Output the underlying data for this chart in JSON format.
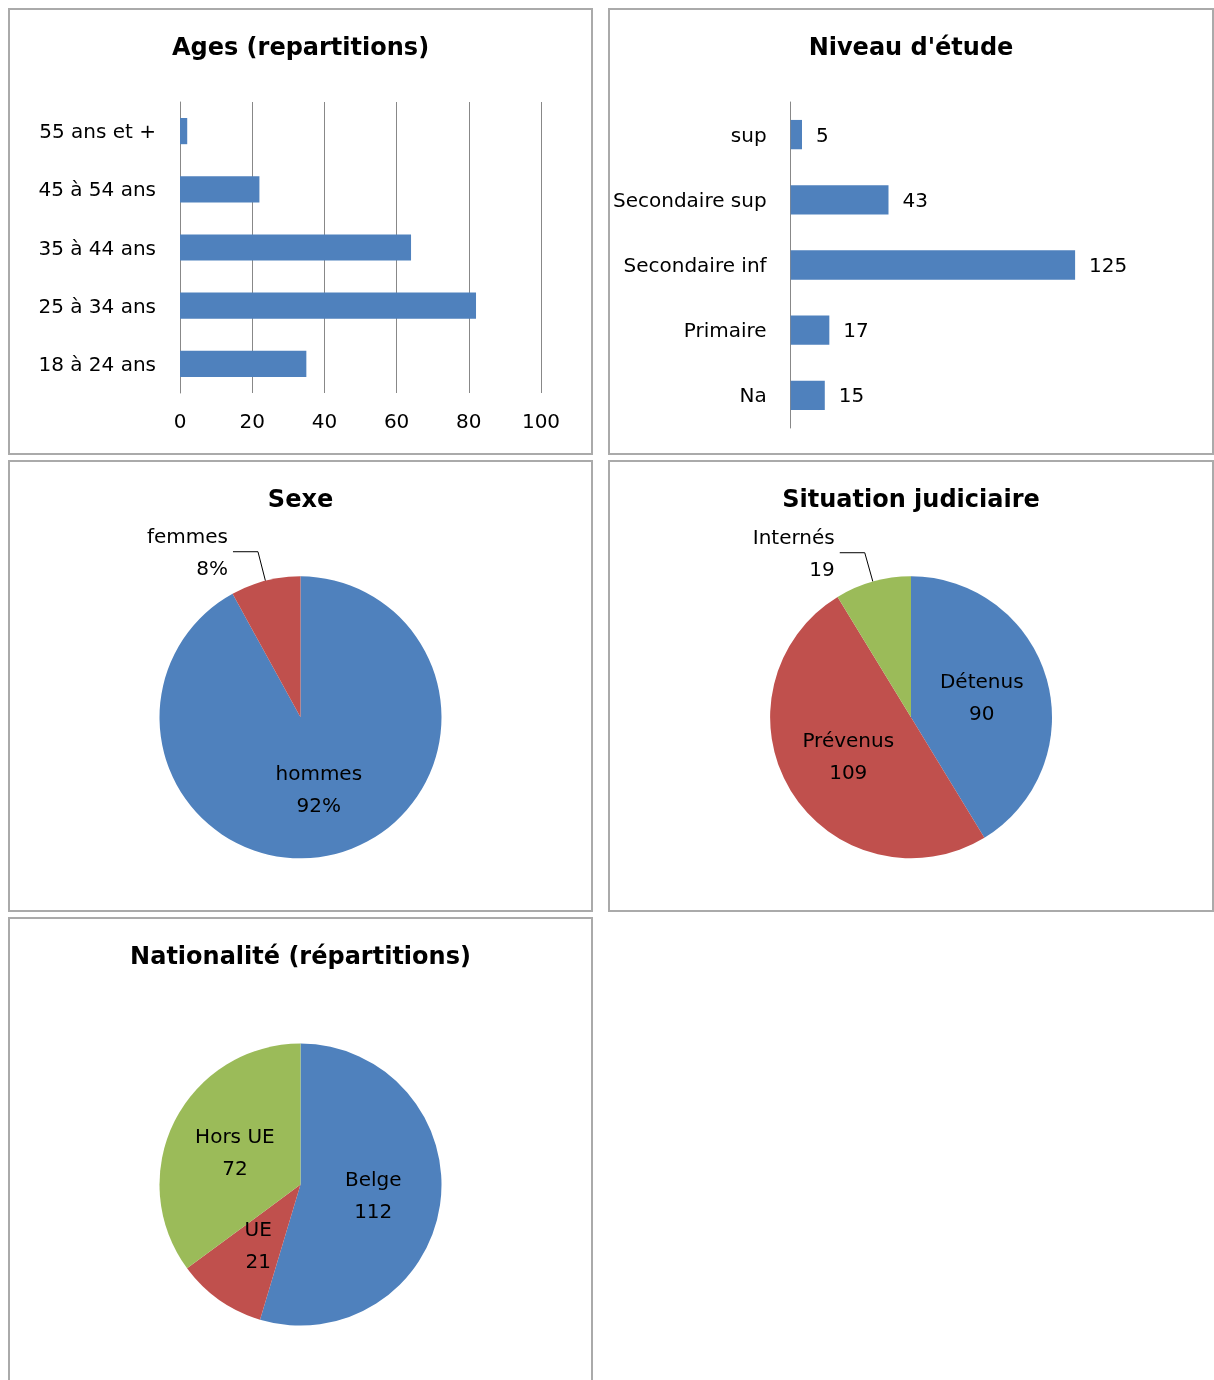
{
  "chart_data": [
    {
      "type": "bar",
      "title": "Ages (repartitions)",
      "orientation": "horizontal",
      "categories": [
        "55 ans et +",
        "45 à 54 ans",
        "35 à 44 ans",
        "25 à 34 ans",
        "18 à 24 ans"
      ],
      "values": [
        2,
        22,
        64,
        82,
        35
      ],
      "color": "#4f81bd",
      "xlim": [
        0,
        100
      ],
      "xticks": [
        0,
        20,
        40,
        60,
        80,
        100
      ],
      "grid": "x"
    },
    {
      "type": "bar",
      "title": "Niveau d'étude",
      "orientation": "horizontal",
      "categories": [
        "sup",
        "Secondaire sup",
        "Secondaire inf",
        "Primaire",
        "Na"
      ],
      "values": [
        5,
        43,
        125,
        17,
        15
      ],
      "color": "#4f81bd",
      "data_labels": true,
      "tick_labels": "y"
    },
    {
      "type": "pie",
      "title": "Sexe",
      "categories": [
        "hommes",
        "femmes"
      ],
      "values": [
        92,
        8
      ],
      "value_labels": [
        "92%",
        "8%"
      ],
      "colors": [
        "#4f81bd",
        "#c0504d"
      ]
    },
    {
      "type": "pie",
      "title": "Situation judiciaire",
      "categories": [
        "Détenus",
        "Prévenus",
        "Internés"
      ],
      "values": [
        90,
        109,
        19
      ],
      "data_labels": true,
      "colors": [
        "#4f81bd",
        "#c0504d",
        "#9bbb59"
      ]
    },
    {
      "type": "pie",
      "title": "Nationalité (répartitions)",
      "categories": [
        "Belge",
        "UE",
        "Hors UE"
      ],
      "values": [
        112,
        21,
        72
      ],
      "data_labels": true,
      "colors": [
        "#4f81bd",
        "#c0504d",
        "#9bbb59"
      ]
    }
  ]
}
